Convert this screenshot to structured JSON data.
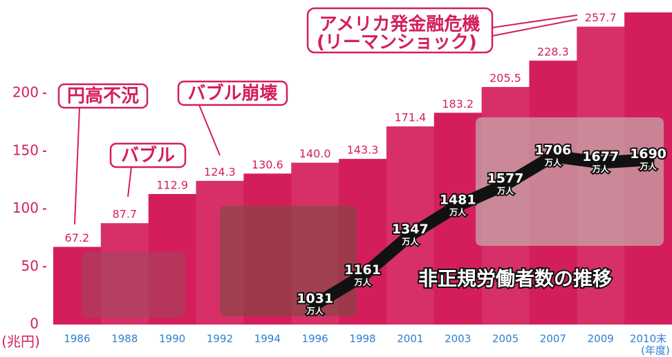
{
  "chart_data": {
    "type": "bar",
    "categories": [
      "1986",
      "1988",
      "1990",
      "1992",
      "1994",
      "1996",
      "1998",
      "2001",
      "2003",
      "2005",
      "2007",
      "2009",
      "2010末"
    ],
    "values": [
      67.2,
      87.7,
      112.9,
      124.3,
      130.6,
      140.0,
      143.3,
      171.4,
      183.2,
      205.5,
      228.3,
      257.7,
      270
    ],
    "value_labels": [
      "67.2",
      "87.7",
      "112.9",
      "124.3",
      "130.6",
      "140.0",
      "143.3",
      "171.4",
      "183.2",
      "205.5",
      "228.3",
      "257.7",
      null
    ],
    "color": "#d41e5c",
    "ylim": [
      0,
      270
    ],
    "yticks": [
      0,
      50,
      100,
      150,
      200
    ],
    "y_unit": "(兆円)",
    "x_unit": "(年度)",
    "annotations": [
      "円高不況",
      "バブル",
      "バブル崩壊",
      "アメリカ発金融危機",
      "(リーマンショック)"
    ],
    "line": {
      "type": "line",
      "name": "非正規労働者数の推移",
      "axis": "y2",
      "color": "#111111",
      "unit": "万人",
      "values": [
        null,
        null,
        null,
        null,
        null,
        1031,
        1161,
        1347,
        1481,
        1577,
        1706,
        1677,
        1690
      ]
    },
    "y2lim": [
      940,
      2360
    ]
  }
}
